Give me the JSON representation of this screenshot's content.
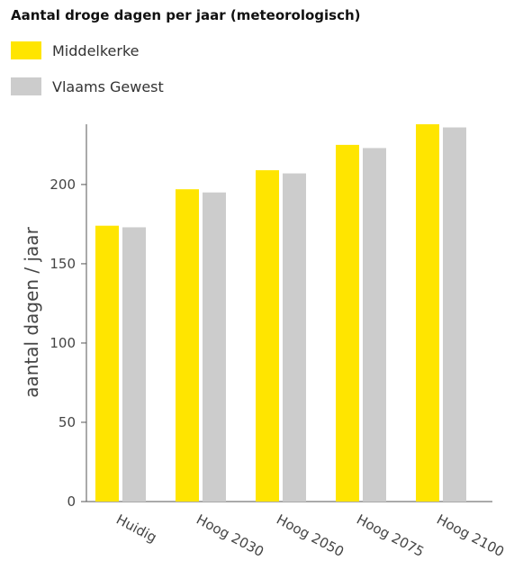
{
  "chart_data": {
    "type": "bar",
    "title": "Aantal droge dagen per jaar (meteorologisch)",
    "xlabel": "",
    "ylabel": "aantal dagen / jaar",
    "categories": [
      "Huidig",
      "Hoog 2030",
      "Hoog 2050",
      "Hoog 2075",
      "Hoog 2100"
    ],
    "series": [
      {
        "name": "Middelkerke",
        "color": "#FFE500",
        "values": [
          174,
          197,
          209,
          225,
          238
        ]
      },
      {
        "name": "Vlaams Gewest",
        "color": "#CCCCCC",
        "values": [
          173,
          195,
          207,
          223,
          236
        ]
      }
    ],
    "ylim": [
      0,
      238
    ],
    "yticks": [
      0,
      50,
      100,
      150,
      200
    ],
    "grid": false,
    "legend_position": "top-left"
  }
}
